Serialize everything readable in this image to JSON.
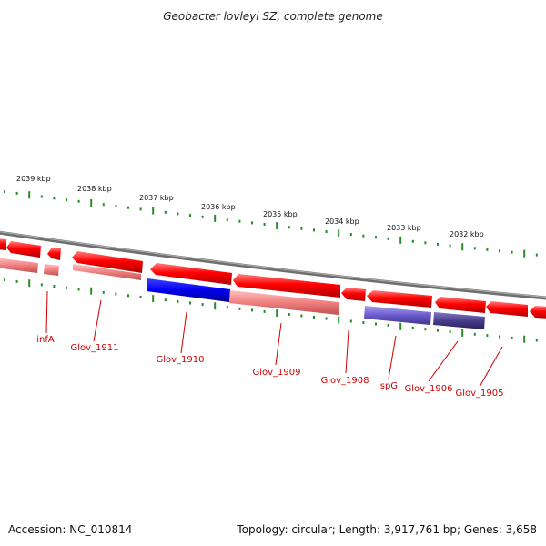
{
  "title": "Geobacter lovleyi SZ, complete genome",
  "accession": "Accession: NC_010814",
  "summary": "Topology: circular; Length: 3,917,761 bp; Genes: 3,658",
  "ticks": [
    {
      "label": "2039 kbp",
      "pos": 2039
    },
    {
      "label": "2038 kbp",
      "pos": 2038
    },
    {
      "label": "2037 kbp",
      "pos": 2037
    },
    {
      "label": "2036 kbp",
      "pos": 2036
    },
    {
      "label": "2035 kbp",
      "pos": 2035
    },
    {
      "label": "2034 kbp",
      "pos": 2034
    },
    {
      "label": "2033 kbp",
      "pos": 2033
    },
    {
      "label": "2032 kbp",
      "pos": 2032
    }
  ],
  "genes": [
    {
      "name": "infA"
    },
    {
      "name": "Glov_1911"
    },
    {
      "name": "Glov_1910"
    },
    {
      "name": "Glov_1909"
    },
    {
      "name": "Glov_1908"
    },
    {
      "name": "ispG"
    },
    {
      "name": "Glov_1906"
    },
    {
      "name": "Glov_1905"
    }
  ],
  "colors": {
    "cds": "#ff0000",
    "cds_light": "#f08080",
    "highlight": "#0000ee",
    "feature_purple": "#6a5acd",
    "feature_dark": "#483d8b",
    "backbone": "#808080",
    "tick": "#2a8a2a",
    "label": "#cc0000"
  }
}
